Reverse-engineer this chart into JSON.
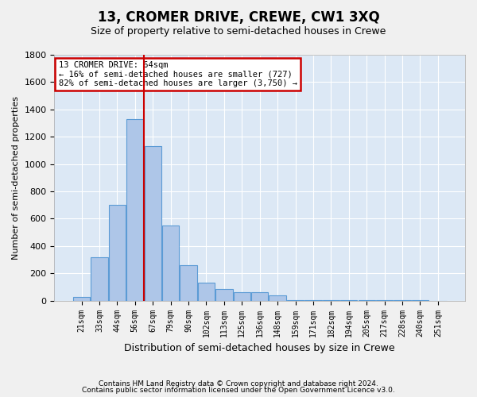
{
  "title": "13, CROMER DRIVE, CREWE, CW1 3XQ",
  "subtitle": "Size of property relative to semi-detached houses in Crewe",
  "xlabel": "Distribution of semi-detached houses by size in Crewe",
  "ylabel": "Number of semi-detached properties",
  "footer_line1": "Contains HM Land Registry data © Crown copyright and database right 2024.",
  "footer_line2": "Contains public sector information licensed under the Open Government Licence v3.0.",
  "annotation_title": "13 CROMER DRIVE: 64sqm",
  "annotation_line1": "← 16% of semi-detached houses are smaller (727)",
  "annotation_line2": "82% of semi-detached houses are larger (3,750) →",
  "bin_labels": [
    "21sqm",
    "33sqm",
    "44sqm",
    "56sqm",
    "67sqm",
    "79sqm",
    "90sqm",
    "102sqm",
    "113sqm",
    "125sqm",
    "136sqm",
    "148sqm",
    "159sqm",
    "171sqm",
    "182sqm",
    "194sqm",
    "205sqm",
    "217sqm",
    "228sqm",
    "240sqm",
    "251sqm"
  ],
  "bar_values": [
    30,
    320,
    700,
    1330,
    1130,
    550,
    260,
    130,
    85,
    60,
    60,
    40,
    5,
    5,
    5,
    5,
    5,
    5,
    5,
    5,
    0
  ],
  "bar_color": "#aec6e8",
  "bar_edge_color": "#5b9bd5",
  "vline_color": "#cc0000",
  "vline_x": 3.5,
  "annotation_box_color": "#cc0000",
  "background_color": "#dce8f5",
  "grid_color": "#ffffff",
  "fig_bg_color": "#f0f0f0",
  "ylim": [
    0,
    1800
  ],
  "yticks": [
    0,
    200,
    400,
    600,
    800,
    1000,
    1200,
    1400,
    1600,
    1800
  ]
}
